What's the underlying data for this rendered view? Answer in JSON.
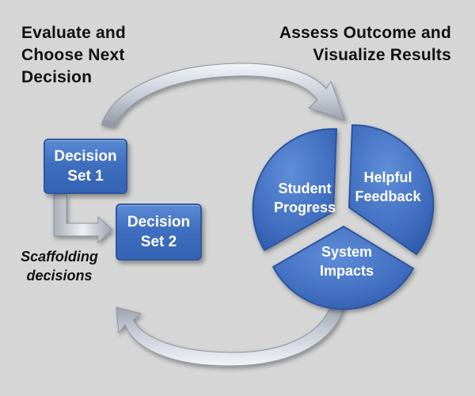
{
  "headings": {
    "left": [
      "Evaluate and",
      "Choose Next",
      "Decision"
    ],
    "right": [
      "Assess Outcome and",
      "Visualize Results"
    ]
  },
  "decisions": {
    "set1": [
      "Decision",
      "Set 1"
    ],
    "set2": [
      "Decision",
      "Set 2"
    ],
    "scaffold_label": [
      "Scaffolding",
      "decisions"
    ]
  },
  "pie": {
    "segments": [
      {
        "label": [
          "Student",
          "Progress"
        ],
        "icon": "pie-segment"
      },
      {
        "label": [
          "Helpful",
          "Feedback"
        ],
        "icon": "pie-segment"
      },
      {
        "label": [
          "System",
          "Impacts"
        ],
        "icon": "pie-segment"
      }
    ],
    "fill_color": "#3f6cbf",
    "border_color": "#2b55a0"
  },
  "colors": {
    "background": "#d6d6d6",
    "box_fill": "#4674c6",
    "arrow_fill": "#c7ccd6",
    "text_dark": "#111111"
  }
}
